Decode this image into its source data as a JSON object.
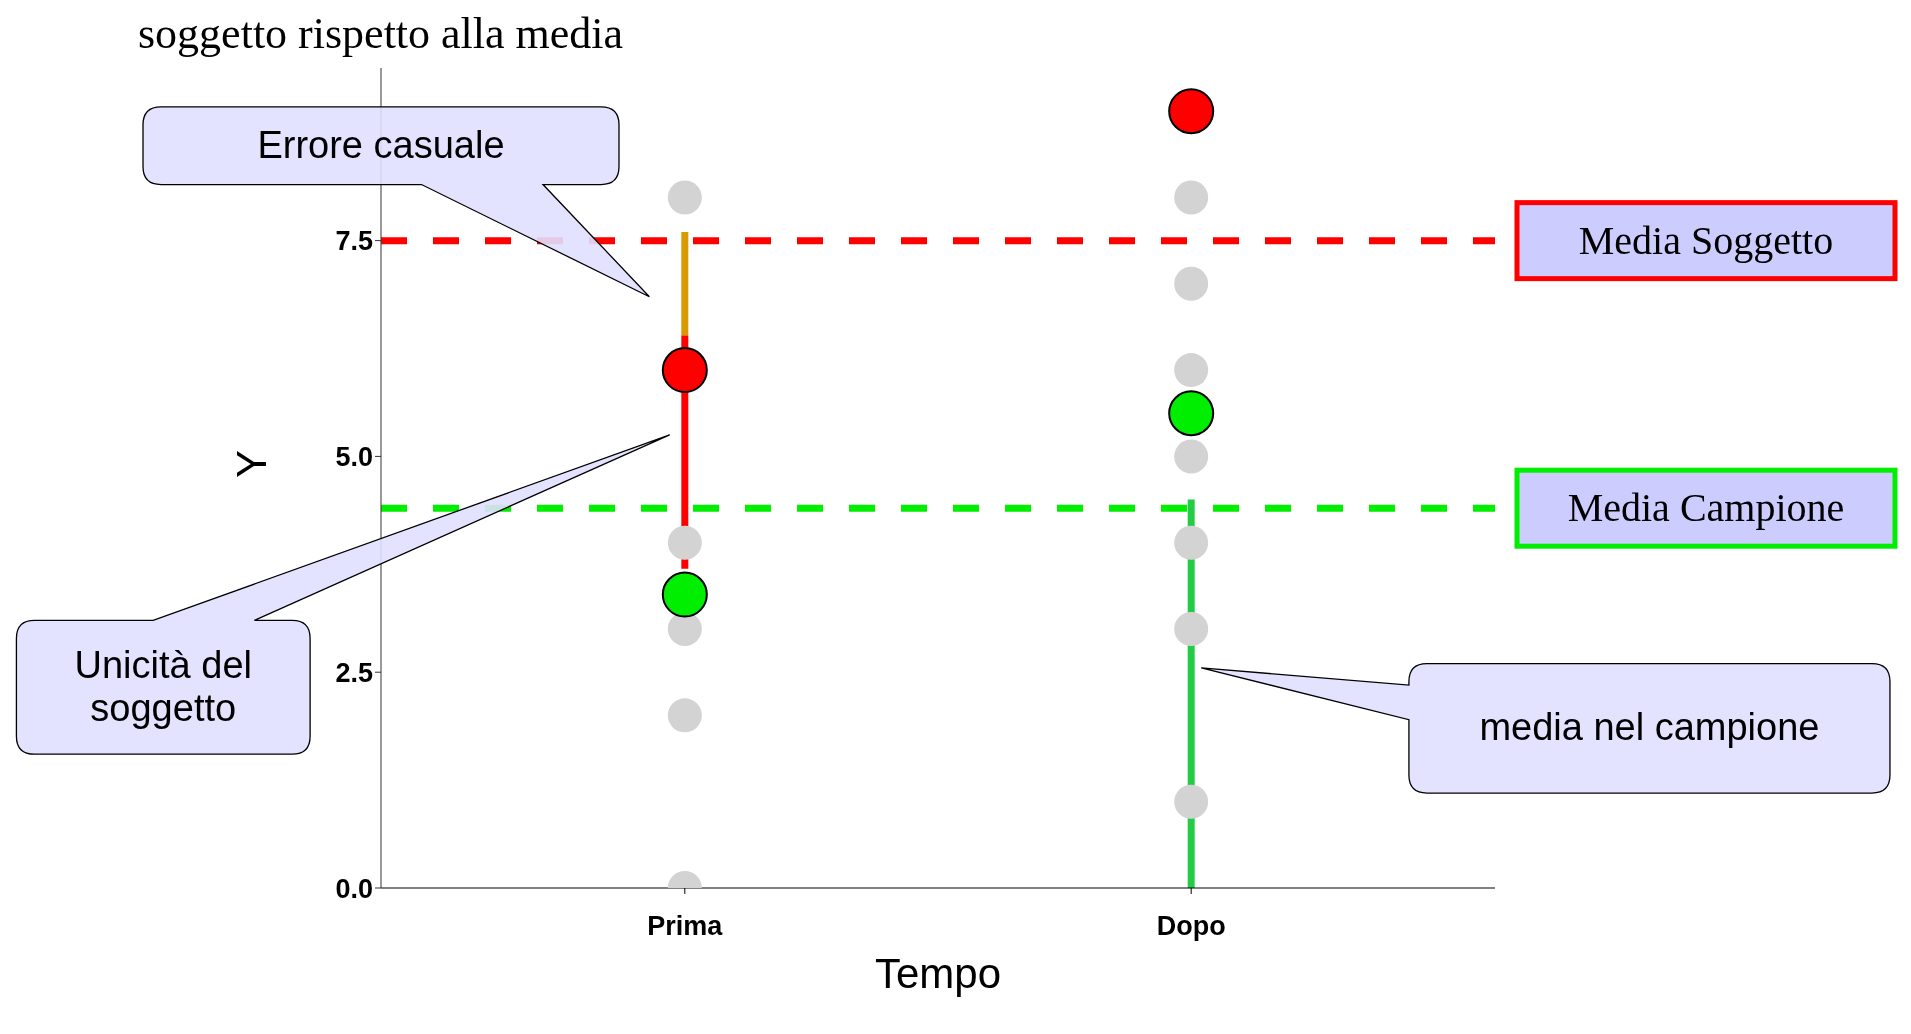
{
  "chart_data": {
    "type": "scatter",
    "title": "soggetto rispetto alla media",
    "xlabel": "Tempo",
    "ylabel": "Y",
    "categories": [
      "Prima",
      "Dopo"
    ],
    "ylim": [
      0,
      9.5
    ],
    "yticks": [
      {
        "value": 0,
        "label": "0.0"
      },
      {
        "value": 2.5,
        "label": "2.5"
      },
      {
        "value": 5,
        "label": "5.0"
      },
      {
        "value": 7.5,
        "label": "7.5"
      }
    ],
    "grid": false,
    "legend": false,
    "marker": "circle",
    "series": [
      {
        "color": "#d3d3d3",
        "x": [
          "Prima",
          "Prima",
          "Prima",
          "Prima",
          "Prima",
          "Dopo",
          "Dopo",
          "Dopo",
          "Dopo",
          "Dopo",
          "Dopo",
          "Dopo"
        ],
        "values": [
          8,
          4,
          3,
          2,
          0,
          8,
          7,
          6,
          5,
          4,
          3,
          1
        ]
      },
      {
        "type": "line",
        "marker": "none",
        "color": "#d99a00",
        "x": [
          "Prima",
          "Prima"
        ],
        "values": [
          7.6,
          6.4
        ]
      },
      {
        "type": "line",
        "marker": "none",
        "color": "#ff0000",
        "x": [
          "Prima",
          "Prima"
        ],
        "values": [
          6.4,
          3.7
        ]
      },
      {
        "type": "line",
        "marker": "none",
        "color": "#22cc44",
        "x": [
          "Dopo",
          "Dopo"
        ],
        "values": [
          4.5,
          0
        ]
      },
      {
        "color": "#ff0000",
        "x": [
          "Prima",
          "Dopo"
        ],
        "values": [
          6,
          9
        ]
      },
      {
        "color": "#00ee00",
        "x": [
          "Prima",
          "Dopo"
        ],
        "values": [
          3.4,
          5.5
        ]
      }
    ],
    "ref_lines": [
      {
        "axis": "y",
        "value": 7.5,
        "label": "Media Soggetto",
        "color": "#ff0000",
        "line_style": "dashed"
      },
      {
        "axis": "y",
        "value": 4.4,
        "label": "Media Campione",
        "color": "#00ee00",
        "line_style": "dashed"
      }
    ],
    "annotations": [
      "Errore casuale",
      "Unicità del soggetto",
      "media nel campione"
    ]
  }
}
